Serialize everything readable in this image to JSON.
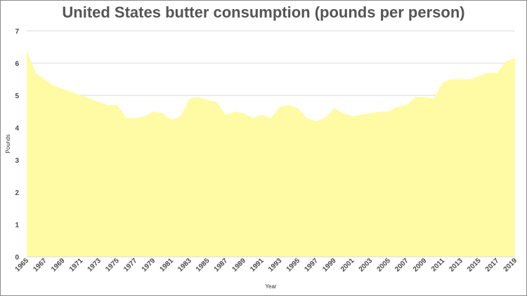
{
  "chart_data": {
    "type": "area",
    "title": "United States butter consumption (pounds per person)",
    "xlabel": "Year",
    "ylabel": "Pounds",
    "ylim": [
      0,
      7
    ],
    "yticks": [
      0,
      1,
      2,
      3,
      4,
      5,
      6,
      7
    ],
    "xtick_labels": [
      "1965",
      "1967",
      "1969",
      "1971",
      "1973",
      "1975",
      "1977",
      "1979",
      "1981",
      "1983",
      "1985",
      "1987",
      "1989",
      "1991",
      "1993",
      "1995",
      "1997",
      "1999",
      "2001",
      "2003",
      "2005",
      "2007",
      "2009",
      "2011",
      "2013",
      "2015",
      "2017",
      "2019"
    ],
    "grid": "horizontal",
    "legend": "none",
    "fill_color": "#FFFBA4",
    "grid_color": "#D9D9D9",
    "x": [
      1965,
      1966,
      1967,
      1968,
      1969,
      1970,
      1971,
      1972,
      1973,
      1974,
      1975,
      1976,
      1977,
      1978,
      1979,
      1980,
      1981,
      1982,
      1983,
      1984,
      1985,
      1986,
      1987,
      1988,
      1989,
      1990,
      1991,
      1992,
      1993,
      1994,
      1995,
      1996,
      1997,
      1998,
      1999,
      2000,
      2001,
      2002,
      2003,
      2004,
      2005,
      2006,
      2007,
      2008,
      2009,
      2010,
      2011,
      2012,
      2013,
      2014,
      2015,
      2016,
      2017,
      2018,
      2019
    ],
    "values": [
      6.4,
      5.7,
      5.5,
      5.3,
      5.2,
      5.1,
      5.0,
      4.9,
      4.8,
      4.7,
      4.7,
      4.3,
      4.3,
      4.35,
      4.5,
      4.45,
      4.25,
      4.35,
      4.9,
      4.95,
      4.85,
      4.8,
      4.4,
      4.5,
      4.45,
      4.3,
      4.4,
      4.3,
      4.65,
      4.7,
      4.6,
      4.3,
      4.2,
      4.3,
      4.6,
      4.45,
      4.35,
      4.4,
      4.45,
      4.5,
      4.5,
      4.65,
      4.7,
      4.95,
      4.95,
      4.9,
      5.4,
      5.5,
      5.5,
      5.5,
      5.6,
      5.7,
      5.7,
      6.05,
      6.15
    ]
  }
}
